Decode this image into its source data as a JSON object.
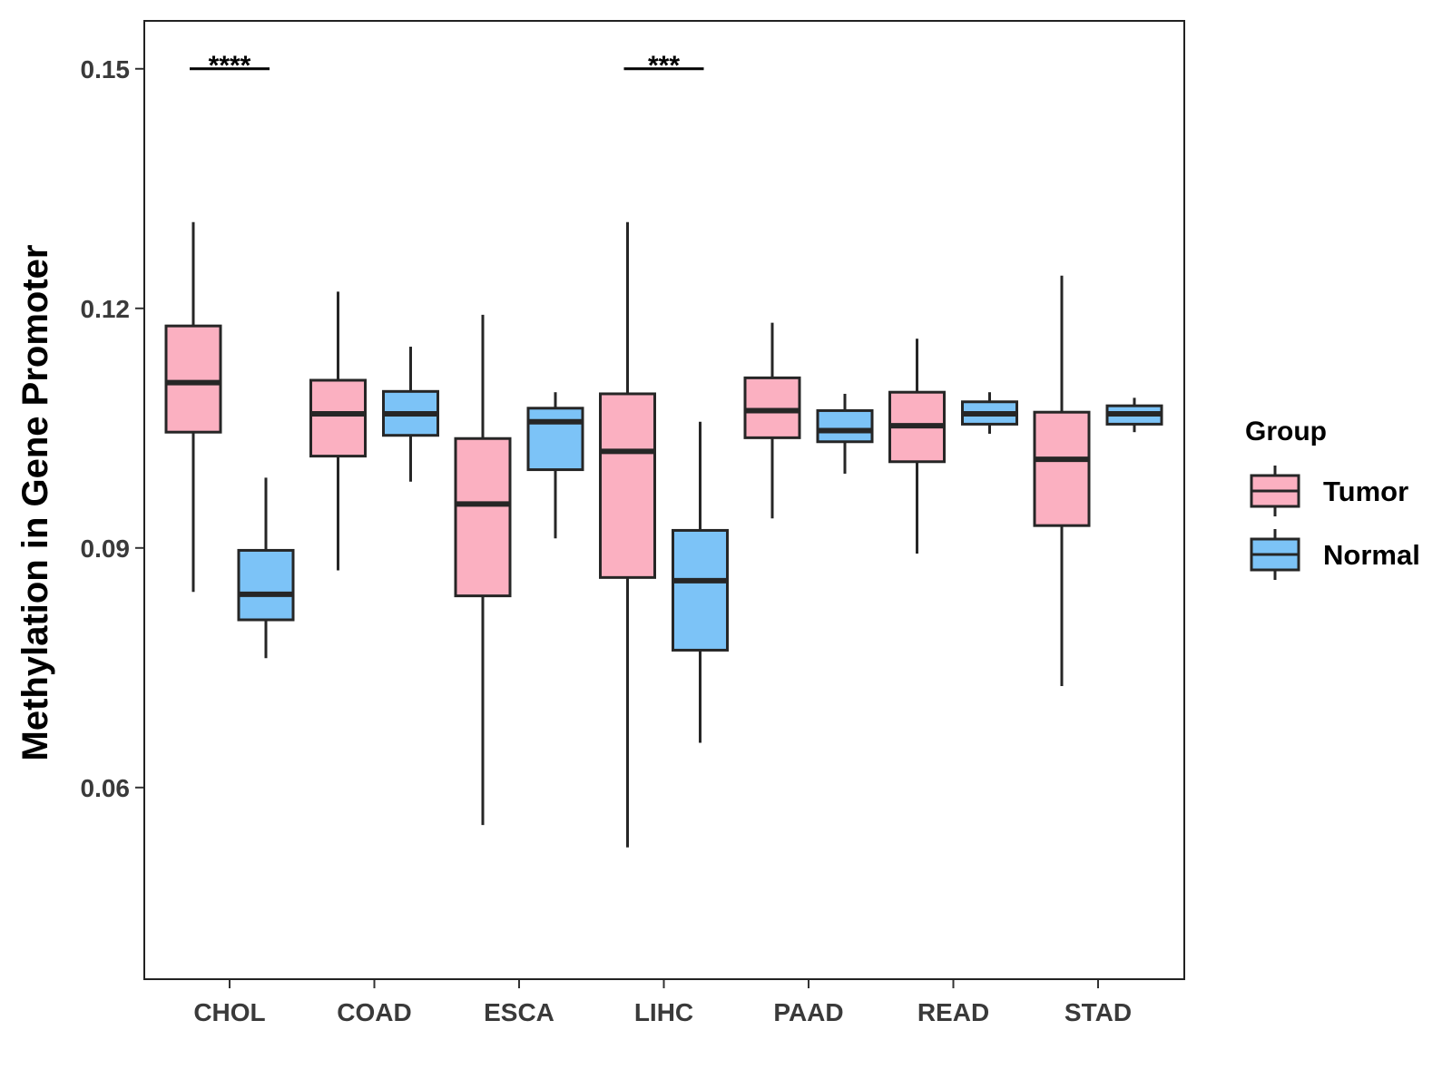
{
  "chart_data": {
    "type": "boxplot",
    "title": "",
    "xlabel": "",
    "ylabel": "Methylation in Gene Promoter",
    "ylim": [
      0.036,
      0.156
    ],
    "yticks": [
      {
        "value": 0.06,
        "label": "0.06"
      },
      {
        "value": 0.09,
        "label": "0.09"
      },
      {
        "value": 0.12,
        "label": "0.12"
      },
      {
        "value": 0.15,
        "label": "0.15"
      }
    ],
    "categories": [
      "CHOL",
      "COAD",
      "ESCA",
      "LIHC",
      "PAAD",
      "READ",
      "STAD"
    ],
    "legend": {
      "title": "Group",
      "position": "right",
      "entries": [
        {
          "name": "Tumor",
          "color": "#fbb0c1"
        },
        {
          "name": "Normal",
          "color": "#7cc3f7"
        }
      ]
    },
    "series": [
      {
        "name": "Tumor",
        "color": "#fbb0c1",
        "boxes": [
          {
            "category": "CHOL",
            "whisker_low": 0.0845,
            "q1": 0.1045,
            "median": 0.1107,
            "q3": 0.1178,
            "whisker_high": 0.1308
          },
          {
            "category": "COAD",
            "whisker_low": 0.0872,
            "q1": 0.1015,
            "median": 0.1068,
            "q3": 0.111,
            "whisker_high": 0.1221
          },
          {
            "category": "ESCA",
            "whisker_low": 0.0553,
            "q1": 0.084,
            "median": 0.0955,
            "q3": 0.1037,
            "whisker_high": 0.1192
          },
          {
            "category": "LIHC",
            "whisker_low": 0.0525,
            "q1": 0.0863,
            "median": 0.1021,
            "q3": 0.1093,
            "whisker_high": 0.1308
          },
          {
            "category": "PAAD",
            "whisker_low": 0.0937,
            "q1": 0.1038,
            "median": 0.1072,
            "q3": 0.1113,
            "whisker_high": 0.1182
          },
          {
            "category": "READ",
            "whisker_low": 0.0893,
            "q1": 0.1008,
            "median": 0.1053,
            "q3": 0.1095,
            "whisker_high": 0.1162
          },
          {
            "category": "STAD",
            "whisker_low": 0.0727,
            "q1": 0.0928,
            "median": 0.1011,
            "q3": 0.107,
            "whisker_high": 0.1241
          }
        ]
      },
      {
        "name": "Normal",
        "color": "#7cc3f7",
        "boxes": [
          {
            "category": "CHOL",
            "whisker_low": 0.0762,
            "q1": 0.081,
            "median": 0.0842,
            "q3": 0.0897,
            "whisker_high": 0.0988
          },
          {
            "category": "COAD",
            "whisker_low": 0.0983,
            "q1": 0.1041,
            "median": 0.1068,
            "q3": 0.1096,
            "whisker_high": 0.1152
          },
          {
            "category": "ESCA",
            "whisker_low": 0.0912,
            "q1": 0.0998,
            "median": 0.1058,
            "q3": 0.1075,
            "whisker_high": 0.1095
          },
          {
            "category": "LIHC",
            "whisker_low": 0.0656,
            "q1": 0.0772,
            "median": 0.0859,
            "q3": 0.0922,
            "whisker_high": 0.1058
          },
          {
            "category": "PAAD",
            "whisker_low": 0.0993,
            "q1": 0.1033,
            "median": 0.1047,
            "q3": 0.1072,
            "whisker_high": 0.1093
          },
          {
            "category": "READ",
            "whisker_low": 0.1043,
            "q1": 0.1055,
            "median": 0.1068,
            "q3": 0.1083,
            "whisker_high": 0.1095
          },
          {
            "category": "STAD",
            "whisker_low": 0.1045,
            "q1": 0.1055,
            "median": 0.1068,
            "q3": 0.1078,
            "whisker_high": 0.1088
          }
        ]
      }
    ],
    "annotations": [
      {
        "category": "CHOL",
        "label": "****",
        "y": 0.15
      },
      {
        "category": "LIHC",
        "label": "***",
        "y": 0.15
      }
    ]
  }
}
